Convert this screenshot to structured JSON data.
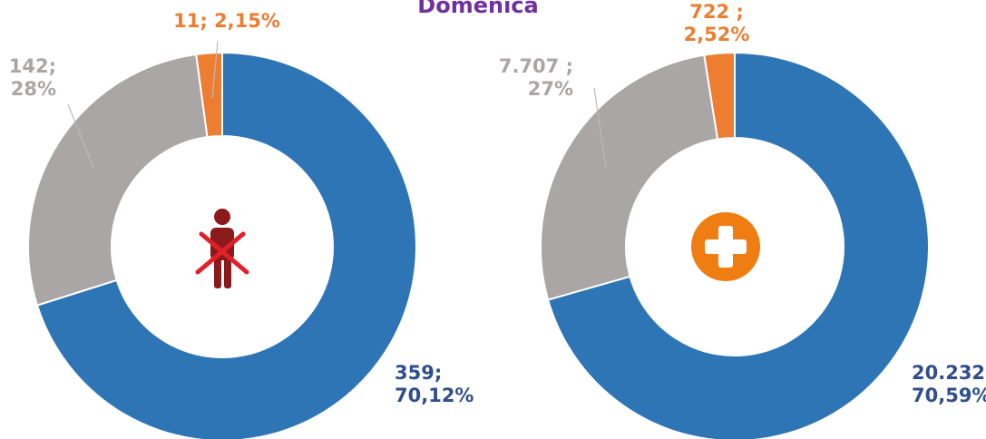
{
  "title": "Domenica",
  "chart_data": [
    {
      "type": "donut",
      "values": [
        359,
        142,
        11
      ],
      "value_labels": [
        [
          "359;",
          "70,12%"
        ],
        [
          "142;",
          "28%"
        ],
        [
          "11; 2,15%"
        ]
      ],
      "colors": [
        "#2e75b6",
        "#a9a6a5",
        "#ed7d31"
      ]
    },
    {
      "type": "donut",
      "values": [
        20232,
        7707,
        722
      ],
      "value_labels": [
        [
          "20.232 ;",
          "70,59%"
        ],
        [
          "7.707 ;",
          "27%"
        ],
        [
          "722 ;",
          "2,52%"
        ]
      ],
      "colors": [
        "#2e75b6",
        "#a9a6a5",
        "#ed7d31"
      ]
    }
  ]
}
